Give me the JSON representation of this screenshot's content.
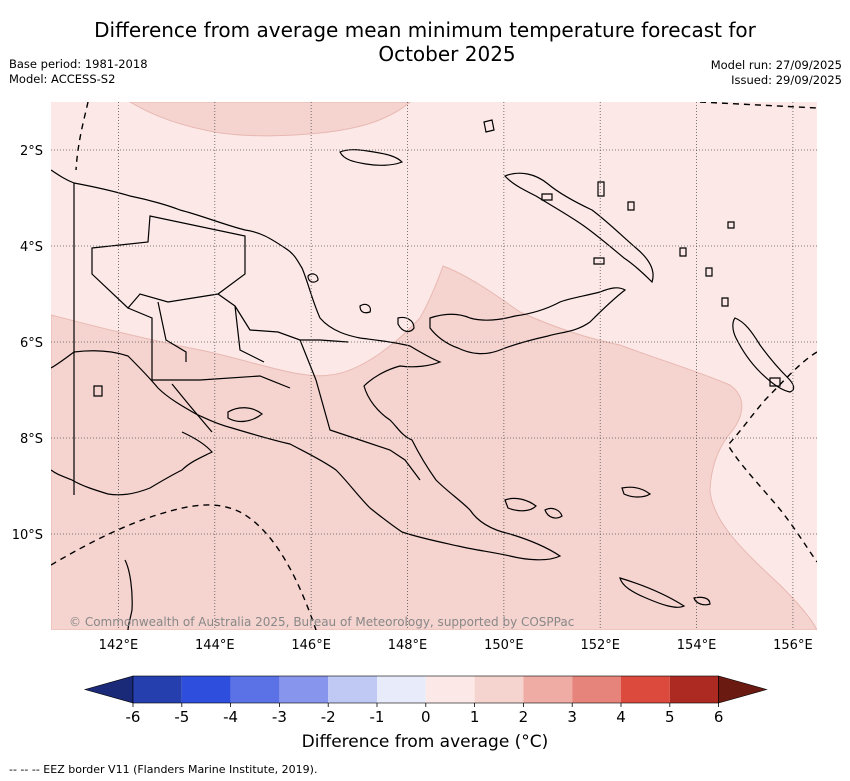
{
  "header": {
    "title_line1": "Difference from average mean minimum temperature forecast for",
    "title_line2": "October 2025",
    "base_period": "Base period: 1981-2018",
    "model": "Model: ACCESS-S2",
    "model_run": "Model run: 27/09/2025",
    "issued": "Issued: 29/09/2025"
  },
  "map": {
    "region": "Papua New Guinea",
    "lon_range": [
      140.6,
      156.5
    ],
    "lat_range": [
      -12.0,
      -1.0
    ],
    "x_ticks": [
      "142°E",
      "144°E",
      "146°E",
      "148°E",
      "150°E",
      "152°E",
      "154°E",
      "156°E"
    ],
    "y_ticks": [
      "2°S",
      "4°S",
      "6°S",
      "8°S",
      "10°S"
    ],
    "copyright": "© Commonwealth of Australia 2025, Bureau of Meteorology, supported by COSPPac",
    "colors": {
      "anomaly_0_1": "#fce9e7",
      "anomaly_1_2": "#f5d3cf",
      "land_outline": "#000000",
      "gridline": "#555555"
    }
  },
  "colorbar": {
    "title": "Difference from average (°C)",
    "tick_labels": [
      "-6",
      "-5",
      "-4",
      "-3",
      "-2",
      "-1",
      "0",
      "1",
      "2",
      "3",
      "4",
      "5",
      "6"
    ],
    "under_color": "#1b2a78",
    "over_color": "#6b1a12",
    "bin_colors": [
      "#253fae",
      "#2e4ede",
      "#5a72e6",
      "#8796ec",
      "#c0c8f4",
      "#e8ecfa",
      "#fce9e7",
      "#f5d3cf",
      "#efaca4",
      "#e6837a",
      "#dc4a3e",
      "#ad2a22"
    ]
  },
  "footer": {
    "eez_note": "--  --  -- EEZ border V11 (Flanders Marine Institute, 2019)."
  }
}
